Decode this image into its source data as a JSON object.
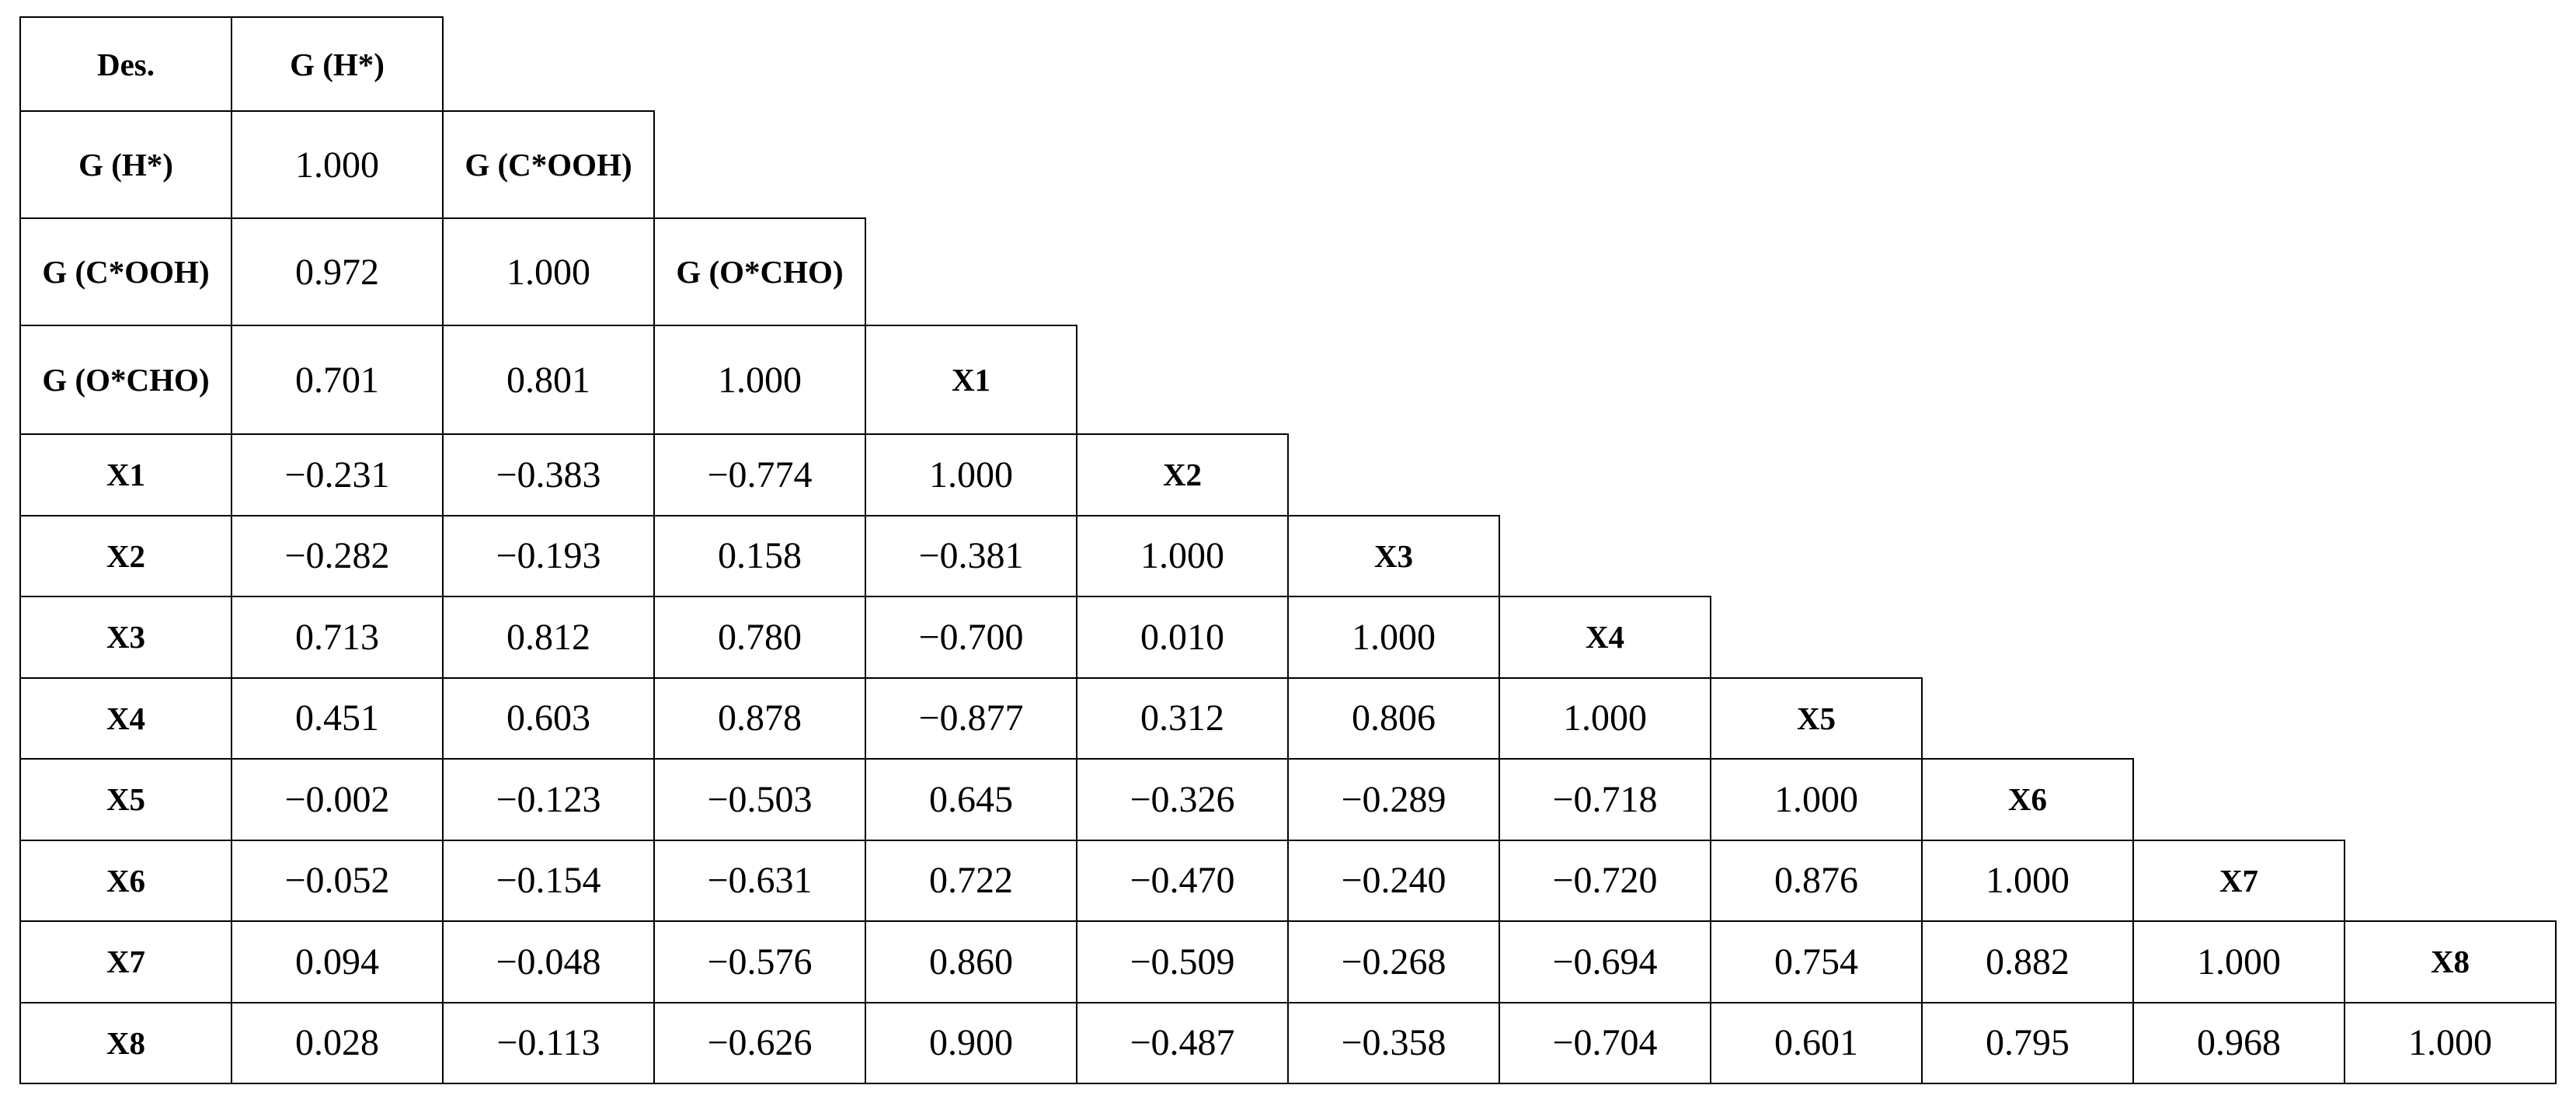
{
  "table": {
    "rows": [
      [
        "Des.",
        "G (H*)"
      ],
      [
        "G (H*)",
        "1.000",
        "G (C*OOH)"
      ],
      [
        "G (C*OOH)",
        "0.972",
        "1.000",
        "G (O*CHO)"
      ],
      [
        "G (O*CHO)",
        "0.701",
        "0.801",
        "1.000",
        "X1"
      ],
      [
        "X1",
        "−0.231",
        "−0.383",
        "−0.774",
        "1.000",
        "X2"
      ],
      [
        "X2",
        "−0.282",
        "−0.193",
        "0.158",
        "−0.381",
        "1.000",
        "X3"
      ],
      [
        "X3",
        "0.713",
        "0.812",
        "0.780",
        "−0.700",
        "0.010",
        "1.000",
        "X4"
      ],
      [
        "X4",
        "0.451",
        "0.603",
        "0.878",
        "−0.877",
        "0.312",
        "0.806",
        "1.000",
        "X5"
      ],
      [
        "X5",
        "−0.002",
        "−0.123",
        "−0.503",
        "0.645",
        "−0.326",
        "−0.289",
        "−0.718",
        "1.000",
        "X6"
      ],
      [
        "X6",
        "−0.052",
        "−0.154",
        "−0.631",
        "0.722",
        "−0.470",
        "−0.240",
        "−0.720",
        "0.876",
        "1.000",
        "X7"
      ],
      [
        "X7",
        "0.094",
        "−0.048",
        "−0.576",
        "0.860",
        "−0.509",
        "−0.268",
        "−0.694",
        "0.754",
        "0.882",
        "1.000",
        "X8"
      ],
      [
        "X8",
        "0.028",
        "−0.113",
        "−0.626",
        "0.900",
        "−0.487",
        "−0.358",
        "−0.704",
        "0.601",
        "0.795",
        "0.968",
        "1.000"
      ]
    ]
  }
}
